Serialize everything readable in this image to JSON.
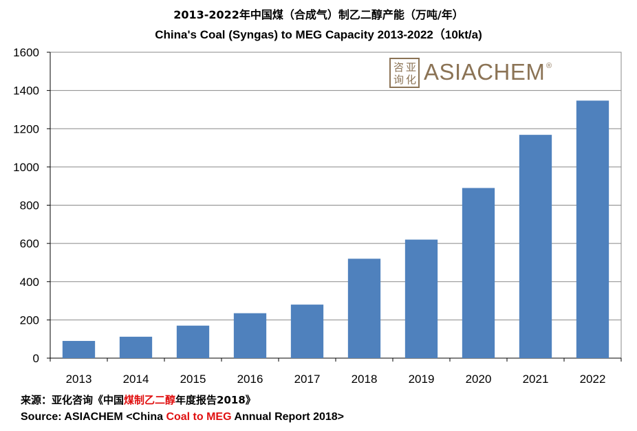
{
  "chart_data": {
    "type": "bar",
    "title": "2013-2022年中国煤（合成气）制乙二醇产能（万吨/年）",
    "subtitle": "China's Coal (Syngas) to MEG Capacity 2013-2022（10kt/a)",
    "categories": [
      "2013",
      "2014",
      "2015",
      "2016",
      "2017",
      "2018",
      "2019",
      "2020",
      "2021",
      "2022"
    ],
    "values": [
      90,
      112,
      170,
      235,
      280,
      520,
      620,
      890,
      1168,
      1347
    ],
    "ylim": [
      0,
      1600
    ],
    "yticks": [
      0,
      200,
      400,
      600,
      800,
      1000,
      1200,
      1400,
      1600
    ],
    "grid": true,
    "bar_color": "#4f81bd"
  },
  "logo": {
    "seal_chars": [
      "咨",
      "亚",
      "询",
      "化"
    ],
    "text": "ASIACHEM",
    "reg_mark": "®"
  },
  "source": {
    "cn_prefix": "来源：亚化咨询《中国",
    "cn_red": "煤制乙二醇",
    "cn_suffix": "年度报告2018》",
    "en_prefix": "Source: ASIACHEM <China ",
    "en_red": "Coal to MEG",
    "en_suffix": " Annual Report 2018>"
  },
  "colors": {
    "highlight": "#e01010",
    "logo": "#8b7355"
  }
}
